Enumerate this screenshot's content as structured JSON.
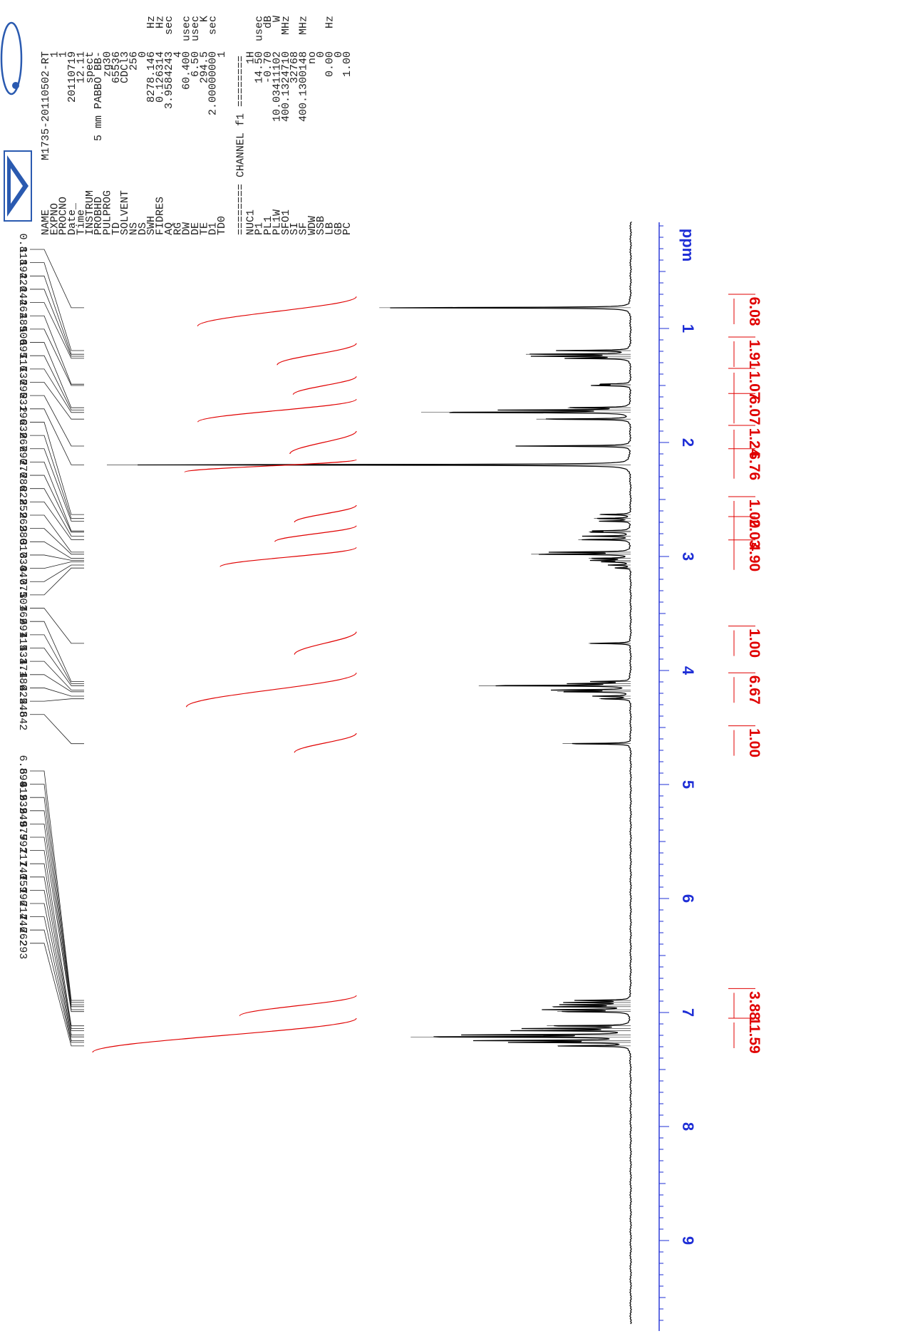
{
  "chart_data": {
    "type": "line",
    "title": "",
    "xlabel": "ppm",
    "x_range": [
      10.0,
      0.0
    ],
    "x_ticks": [
      1,
      2,
      3,
      4,
      5,
      6,
      7,
      8,
      9
    ],
    "peak_labels": [
      "0.818",
      "1.194",
      "1.226",
      "1.244",
      "1.262",
      "1.489",
      "1.500",
      "1.695",
      "1.716",
      "1.736",
      "1.795",
      "2.031",
      "2.196",
      "2.632",
      "2.667",
      "2.690",
      "2.776",
      "2.786",
      "2.822",
      "2.852",
      "2.962",
      "2.980",
      "3.017",
      "3.034",
      "3.047",
      "3.075",
      "3.101",
      "3.762",
      "4.097",
      "4.115",
      "4.133",
      "4.171",
      "4.186",
      "4.225",
      "4.248",
      "4.642",
      "6.894",
      "6.912",
      "6.932",
      "6.949",
      "6.975",
      "6.992",
      "7.117",
      "7.140",
      "7.159",
      "7.196",
      "7.214",
      "7.246",
      "7.262",
      "7.293"
    ],
    "integrals": [
      {
        "value": "6.08",
        "from": 0.72,
        "to": 0.98
      },
      {
        "value": "1.91",
        "from": 1.13,
        "to": 1.32
      },
      {
        "value": "1.07",
        "from": 1.42,
        "to": 1.58
      },
      {
        "value": "6.07",
        "from": 1.62,
        "to": 1.82
      },
      {
        "value": "1.24",
        "from": 1.9,
        "to": 2.1
      },
      {
        "value": "6.76",
        "from": 2.15,
        "to": 2.26
      },
      {
        "value": "1.00",
        "from": 2.55,
        "to": 2.7
      },
      {
        "value": "2.03",
        "from": 2.73,
        "to": 2.87
      },
      {
        "value": "4.90",
        "from": 2.92,
        "to": 3.09
      },
      {
        "value": "1.00",
        "from": 3.66,
        "to": 3.86
      },
      {
        "value": "6.67",
        "from": 4.02,
        "to": 4.32
      },
      {
        "value": "1.00",
        "from": 4.55,
        "to": 4.72
      },
      {
        "value": "3.88",
        "from": 6.85,
        "to": 7.03
      },
      {
        "value": "11.59",
        "from": 7.05,
        "to": 7.35
      }
    ],
    "peaks": [
      {
        "ppm": 0.818,
        "h": 0.48
      },
      {
        "ppm": 1.194,
        "h": 0.14
      },
      {
        "ppm": 1.226,
        "h": 0.2
      },
      {
        "ppm": 1.244,
        "h": 0.18
      },
      {
        "ppm": 1.262,
        "h": 0.12
      },
      {
        "ppm": 1.489,
        "h": 0.06
      },
      {
        "ppm": 1.5,
        "h": 0.07
      },
      {
        "ppm": 1.695,
        "h": 0.12
      },
      {
        "ppm": 1.716,
        "h": 0.24
      },
      {
        "ppm": 1.736,
        "h": 0.4
      },
      {
        "ppm": 1.795,
        "h": 0.18
      },
      {
        "ppm": 2.031,
        "h": 0.22
      },
      {
        "ppm": 2.196,
        "h": 1.0
      },
      {
        "ppm": 2.632,
        "h": 0.06
      },
      {
        "ppm": 2.667,
        "h": 0.07
      },
      {
        "ppm": 2.69,
        "h": 0.06
      },
      {
        "ppm": 2.776,
        "h": 0.07
      },
      {
        "ppm": 2.786,
        "h": 0.08
      },
      {
        "ppm": 2.822,
        "h": 0.09
      },
      {
        "ppm": 2.852,
        "h": 0.1
      },
      {
        "ppm": 2.962,
        "h": 0.15
      },
      {
        "ppm": 2.98,
        "h": 0.19
      },
      {
        "ppm": 3.017,
        "h": 0.08
      },
      {
        "ppm": 3.034,
        "h": 0.07
      },
      {
        "ppm": 3.047,
        "h": 0.05
      },
      {
        "ppm": 3.075,
        "h": 0.04
      },
      {
        "ppm": 3.101,
        "h": 0.03
      },
      {
        "ppm": 3.762,
        "h": 0.08
      },
      {
        "ppm": 4.097,
        "h": 0.07
      },
      {
        "ppm": 4.115,
        "h": 0.11
      },
      {
        "ppm": 4.133,
        "h": 0.29
      },
      {
        "ppm": 4.171,
        "h": 0.15
      },
      {
        "ppm": 4.186,
        "h": 0.14
      },
      {
        "ppm": 4.225,
        "h": 0.07
      },
      {
        "ppm": 4.248,
        "h": 0.06
      },
      {
        "ppm": 4.642,
        "h": 0.13
      },
      {
        "ppm": 6.894,
        "h": 0.1
      },
      {
        "ppm": 6.912,
        "h": 0.12
      },
      {
        "ppm": 6.932,
        "h": 0.13
      },
      {
        "ppm": 6.949,
        "h": 0.15
      },
      {
        "ppm": 6.975,
        "h": 0.16
      },
      {
        "ppm": 6.992,
        "h": 0.14
      },
      {
        "ppm": 7.117,
        "h": 0.16
      },
      {
        "ppm": 7.14,
        "h": 0.2
      },
      {
        "ppm": 7.159,
        "h": 0.22
      },
      {
        "ppm": 7.196,
        "h": 0.32
      },
      {
        "ppm": 7.214,
        "h": 0.42
      },
      {
        "ppm": 7.246,
        "h": 0.3
      },
      {
        "ppm": 7.262,
        "h": 0.22
      },
      {
        "ppm": 7.293,
        "h": 0.14
      }
    ]
  },
  "params": [
    {
      "name": "NAME",
      "value": "M1735-20110502-RT",
      "unit": ""
    },
    {
      "name": "EXPNO",
      "value": "1",
      "unit": ""
    },
    {
      "name": "PROCNO",
      "value": "1",
      "unit": ""
    },
    {
      "name": "Date_",
      "value": "20110719",
      "unit": ""
    },
    {
      "name": "Time",
      "value": "12.11",
      "unit": ""
    },
    {
      "name": "INSTRUM",
      "value": "spect",
      "unit": ""
    },
    {
      "name": "PROBHD",
      "value": "5 mm PABBO BB-",
      "unit": ""
    },
    {
      "name": "PULPROG",
      "value": "zg30",
      "unit": ""
    },
    {
      "name": "TD",
      "value": "65536",
      "unit": ""
    },
    {
      "name": "SOLVENT",
      "value": "CDCl3",
      "unit": ""
    },
    {
      "name": "NS",
      "value": "256",
      "unit": ""
    },
    {
      "name": "DS",
      "value": "0",
      "unit": ""
    },
    {
      "name": "SWH",
      "value": "8278.146",
      "unit": "Hz"
    },
    {
      "name": "FIDRES",
      "value": "0.126314",
      "unit": "Hz"
    },
    {
      "name": "AQ",
      "value": "3.9584243",
      "unit": "sec"
    },
    {
      "name": "RG",
      "value": "4",
      "unit": ""
    },
    {
      "name": "DW",
      "value": "60.400",
      "unit": "usec"
    },
    {
      "name": "DE",
      "value": "6.50",
      "unit": "usec"
    },
    {
      "name": "TE",
      "value": "294.5",
      "unit": "K"
    },
    {
      "name": "D1",
      "value": "2.00000000",
      "unit": "sec"
    },
    {
      "name": "TD0",
      "value": "1",
      "unit": ""
    }
  ],
  "channel_header": "======== CHANNEL f1 ========",
  "channel_params": [
    {
      "name": "NUC1",
      "value": "1H",
      "unit": ""
    },
    {
      "name": "P1",
      "value": "14.50",
      "unit": "usec"
    },
    {
      "name": "PL1",
      "value": "-0.70",
      "unit": "dB"
    },
    {
      "name": "PL1W",
      "value": "10.03411102",
      "unit": "W"
    },
    {
      "name": "SFO1",
      "value": "400.1324710",
      "unit": "MHz"
    },
    {
      "name": "SI",
      "value": "32768",
      "unit": ""
    },
    {
      "name": "SF",
      "value": "400.1300148",
      "unit": "MHz"
    },
    {
      "name": "WDW",
      "value": "no",
      "unit": ""
    },
    {
      "name": "SSB",
      "value": "0",
      "unit": ""
    },
    {
      "name": "LB",
      "value": "0.00",
      "unit": "Hz"
    },
    {
      "name": "GB",
      "value": "0",
      "unit": ""
    },
    {
      "name": "PC",
      "value": "1.00",
      "unit": ""
    }
  ],
  "colors": {
    "spectrum": "#000000",
    "integral": "#e00000",
    "axis": "#1f2fd6",
    "frame": "#2a5ab0"
  },
  "icons": [
    "bruker-logo-icon",
    "atom-logo-icon"
  ]
}
